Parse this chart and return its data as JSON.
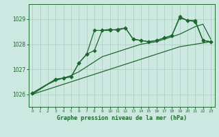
{
  "title": "Graphe pression niveau de la mer (hPa)",
  "background_color": "#cce8e0",
  "grid_color": "#aaccbb",
  "line_color": "#1a6b2a",
  "xlim": [
    -0.5,
    23.5
  ],
  "ylim": [
    1025.5,
    1029.6
  ],
  "yticks": [
    1026,
    1027,
    1028,
    1029
  ],
  "xticks": [
    0,
    1,
    2,
    3,
    4,
    5,
    6,
    7,
    8,
    9,
    10,
    11,
    12,
    13,
    14,
    15,
    16,
    17,
    18,
    19,
    20,
    21,
    22,
    23
  ],
  "line1_x": [
    0,
    1,
    2,
    3,
    4,
    5,
    6,
    7,
    8,
    9,
    10,
    11,
    12,
    13,
    14,
    15,
    16,
    17,
    18,
    19,
    20,
    21,
    22,
    23
  ],
  "line1_y": [
    1026.0,
    1026.1,
    1026.2,
    1026.3,
    1026.4,
    1026.5,
    1026.6,
    1026.7,
    1026.8,
    1026.9,
    1027.0,
    1027.1,
    1027.2,
    1027.3,
    1027.4,
    1027.5,
    1027.6,
    1027.7,
    1027.8,
    1027.9,
    1027.95,
    1028.0,
    1028.05,
    1028.1
  ],
  "line2_x": [
    0,
    1,
    2,
    3,
    4,
    5,
    6,
    7,
    8,
    9,
    10,
    11,
    12,
    13,
    14,
    15,
    16,
    17,
    18,
    19,
    20,
    21,
    22,
    23
  ],
  "line2_y": [
    1026.0,
    1026.2,
    1026.4,
    1026.55,
    1026.65,
    1026.75,
    1026.9,
    1027.1,
    1027.3,
    1027.5,
    1027.6,
    1027.7,
    1027.8,
    1027.9,
    1028.0,
    1028.05,
    1028.1,
    1028.2,
    1028.3,
    1028.4,
    1028.55,
    1028.7,
    1028.8,
    1028.2
  ],
  "line3_x": [
    0,
    3,
    4,
    5,
    6,
    7,
    8,
    9,
    10,
    11,
    12,
    13,
    14,
    15,
    16,
    17,
    18,
    19,
    20,
    21,
    22,
    23
  ],
  "line3_y": [
    1026.05,
    1026.6,
    1026.65,
    1026.7,
    1027.25,
    1027.6,
    1028.55,
    1028.55,
    1028.6,
    1028.55,
    1028.65,
    1028.2,
    1028.15,
    1028.1,
    1028.15,
    1028.25,
    1028.35,
    1029.05,
    1028.95,
    1028.9,
    1028.15,
    1028.1
  ],
  "line4_x": [
    0,
    3,
    4,
    5,
    6,
    7,
    8,
    9,
    10,
    11,
    12,
    13,
    14,
    15,
    16,
    17,
    18,
    19,
    20,
    21,
    22,
    23
  ],
  "line4_y": [
    1026.05,
    1026.6,
    1026.65,
    1026.7,
    1027.25,
    1027.6,
    1027.75,
    1028.55,
    1028.55,
    1028.6,
    1028.65,
    1028.2,
    1028.15,
    1028.1,
    1028.15,
    1028.25,
    1028.35,
    1029.1,
    1028.95,
    1028.95,
    1028.15,
    1028.1
  ]
}
